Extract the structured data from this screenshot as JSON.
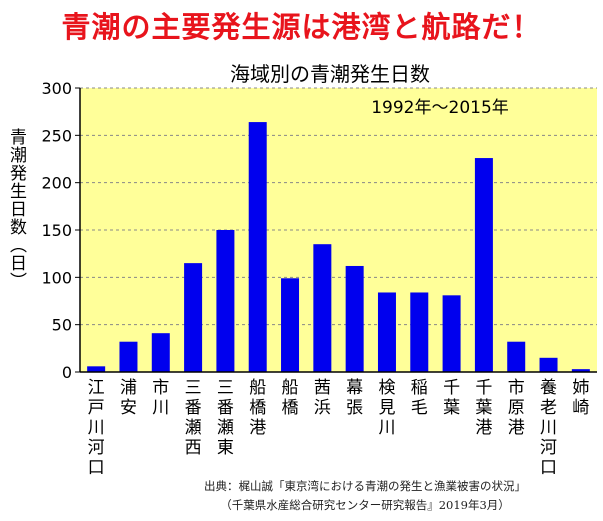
{
  "headline": "青潮の主要発生源は港湾と航路だ！",
  "source_line1": "出典：梶山誠「東京湾における青潮の発生と漁業被害の状況」",
  "source_line2": "（千葉県水産総合研究センター研究報告』2019年3月）",
  "colors": {
    "headline": "#e8141c",
    "plot_background": "#ffff99",
    "bar": "#0000ee",
    "grid": "#888888"
  },
  "chart_data": {
    "type": "bar",
    "title": "海域別の青潮発生日数",
    "annotation": "1992年～2015年",
    "ylabel": "青潮発生日数（日）",
    "xlabel": "",
    "ylim": [
      0,
      300
    ],
    "yticks": [
      0,
      50,
      100,
      150,
      200,
      250,
      300
    ],
    "grid": "horizontal dashed",
    "categories": [
      "江戸川河口",
      "浦安",
      "市川",
      "三番瀬西",
      "三番瀬東",
      "船橋港",
      "船橋",
      "茜浜",
      "幕張",
      "検見川",
      "稲毛",
      "千葉",
      "千葉港",
      "市原港",
      "養老川河口",
      "姉崎"
    ],
    "values": [
      6,
      32,
      41,
      115,
      150,
      264,
      99,
      135,
      112,
      84,
      84,
      81,
      226,
      32,
      15,
      3
    ]
  }
}
